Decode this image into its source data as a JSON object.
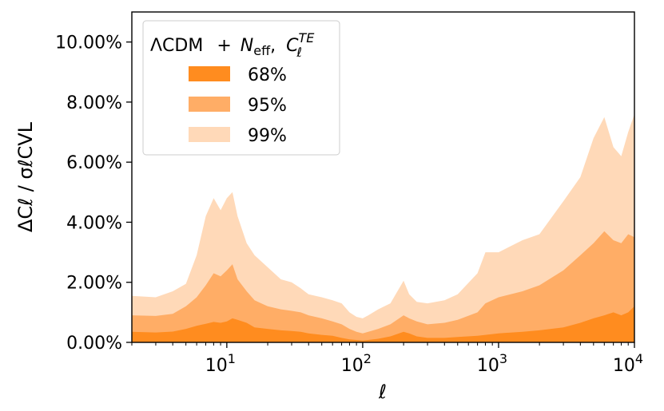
{
  "chart_data": {
    "type": "area",
    "title": "",
    "xscale": "log",
    "xlim": [
      2,
      10000
    ],
    "ylim": [
      0,
      11
    ],
    "xlabel": "ℓ",
    "ylabel": "ΔCℓ / σℓCVL",
    "yticks": [
      0,
      2,
      4,
      6,
      8,
      10
    ],
    "ytick_labels": [
      "0.00%",
      "2.00%",
      "4.00%",
      "6.00%",
      "8.00%",
      "10.00%"
    ],
    "xticks": [
      10,
      100,
      1000,
      10000
    ],
    "xtick_labels": [
      {
        "base": "10",
        "exp": "1"
      },
      {
        "base": "10",
        "exp": "2"
      },
      {
        "base": "10",
        "exp": "3"
      },
      {
        "base": "10",
        "exp": "4"
      }
    ],
    "legend_placement": "top-left",
    "legend_title": {
      "lcdm": "ΛCDM",
      "plus": "+",
      "n": "N",
      "n_sub": "eff",
      "comma": ",",
      "c": "C",
      "c_sub": "ℓ",
      "c_sup": "TE"
    },
    "x": [
      2,
      3,
      4,
      5,
      6,
      7,
      8,
      9,
      10,
      11,
      12,
      14,
      16,
      20,
      25,
      30,
      35,
      40,
      50,
      60,
      70,
      80,
      90,
      100,
      110,
      130,
      160,
      200,
      220,
      250,
      300,
      400,
      500,
      700,
      800,
      1000,
      1500,
      2000,
      3000,
      4000,
      5000,
      6000,
      7000,
      8000,
      9000,
      10000
    ],
    "series": [
      {
        "name": "68%",
        "color": "#ff8c1f",
        "values": [
          0.35,
          0.33,
          0.36,
          0.45,
          0.55,
          0.62,
          0.68,
          0.65,
          0.7,
          0.8,
          0.75,
          0.65,
          0.5,
          0.45,
          0.4,
          0.38,
          0.35,
          0.3,
          0.25,
          0.22,
          0.15,
          0.1,
          0.08,
          0.06,
          0.08,
          0.12,
          0.2,
          0.35,
          0.3,
          0.2,
          0.15,
          0.15,
          0.18,
          0.22,
          0.25,
          0.3,
          0.35,
          0.4,
          0.5,
          0.65,
          0.8,
          0.9,
          1.0,
          0.9,
          1.0,
          1.2
        ]
      },
      {
        "name": "95%",
        "color": "#ffad66",
        "values": [
          0.9,
          0.88,
          0.95,
          1.2,
          1.5,
          1.9,
          2.3,
          2.2,
          2.4,
          2.6,
          2.1,
          1.7,
          1.4,
          1.2,
          1.1,
          1.05,
          1.0,
          0.9,
          0.8,
          0.7,
          0.6,
          0.45,
          0.35,
          0.3,
          0.35,
          0.45,
          0.6,
          0.9,
          0.8,
          0.7,
          0.6,
          0.65,
          0.75,
          1.0,
          1.3,
          1.5,
          1.7,
          1.9,
          2.4,
          2.9,
          3.3,
          3.7,
          3.4,
          3.3,
          3.6,
          3.5
        ]
      },
      {
        "name": "99%",
        "color": "#ffd9b8",
        "values": [
          1.55,
          1.5,
          1.7,
          1.95,
          2.9,
          4.2,
          4.8,
          4.4,
          4.8,
          5.0,
          4.2,
          3.3,
          2.9,
          2.5,
          2.1,
          2.0,
          1.8,
          1.6,
          1.5,
          1.4,
          1.3,
          1.0,
          0.85,
          0.8,
          0.9,
          1.1,
          1.3,
          2.05,
          1.6,
          1.35,
          1.3,
          1.4,
          1.6,
          2.3,
          3.0,
          3.0,
          3.4,
          3.6,
          4.7,
          5.5,
          6.8,
          7.5,
          6.5,
          6.2,
          7.0,
          7.6
        ]
      }
    ]
  }
}
